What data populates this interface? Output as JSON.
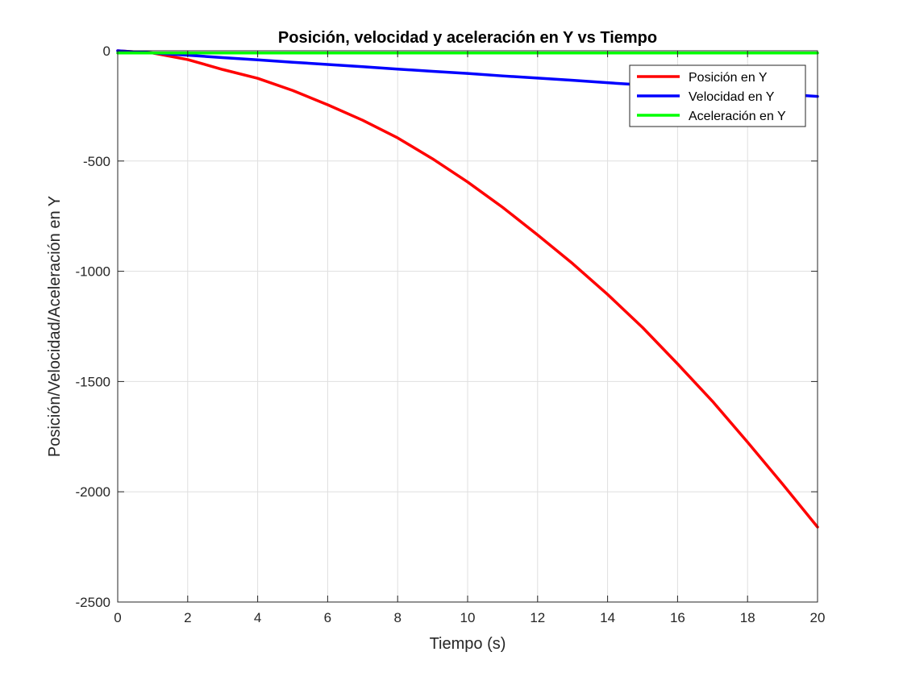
{
  "chart_data": {
    "type": "line",
    "title": "Posición, velocidad y aceleración en Y vs Tiempo",
    "xlabel": "Tiempo (s)",
    "ylabel": "Posición/Velocidad/Aceleración en Y",
    "xlim": [
      0,
      20
    ],
    "ylim": [
      -2500,
      0
    ],
    "xticks": [
      0,
      2,
      4,
      6,
      8,
      10,
      12,
      14,
      16,
      18,
      20
    ],
    "yticks": [
      0,
      -500,
      -1000,
      -1500,
      -2000,
      -2500
    ],
    "xtick_labels": [
      "0",
      "2",
      "4",
      "6",
      "8",
      "10",
      "12",
      "14",
      "16",
      "18",
      "20"
    ],
    "ytick_labels": [
      "0",
      "-500",
      "-1000",
      "-1500",
      "-2000",
      "-2500"
    ],
    "grid": true,
    "legend_position": "top-right",
    "x": [
      0,
      1,
      2,
      3,
      4,
      5,
      6,
      7,
      8,
      9,
      10,
      11,
      12,
      13,
      14,
      15,
      16,
      17,
      18,
      19,
      20
    ],
    "series": [
      {
        "name": "Posición en Y",
        "color": "#ff0000",
        "values": [
          0,
          -10,
          -40,
          -85,
          -125,
          -180,
          -245,
          -315,
          -395,
          -490,
          -595,
          -710,
          -835,
          -965,
          -1105,
          -1255,
          -1420,
          -1590,
          -1775,
          -1965,
          -2160
        ]
      },
      {
        "name": "Velocidad en Y",
        "color": "#0000ff",
        "values": [
          0,
          -10,
          -20,
          -31,
          -41,
          -52,
          -62,
          -72,
          -83,
          -93,
          -103,
          -114,
          -124,
          -134,
          -145,
          -155,
          -166,
          -176,
          -186,
          -197,
          -207
        ]
      },
      {
        "name": "Aceleración en Y",
        "color": "#00ff00",
        "values": [
          -10,
          -10,
          -10,
          -10,
          -10,
          -10,
          -10,
          -10,
          -10,
          -10,
          -10,
          -10,
          -10,
          -10,
          -10,
          -10,
          -10,
          -10,
          -10,
          -10,
          -10
        ]
      }
    ]
  }
}
